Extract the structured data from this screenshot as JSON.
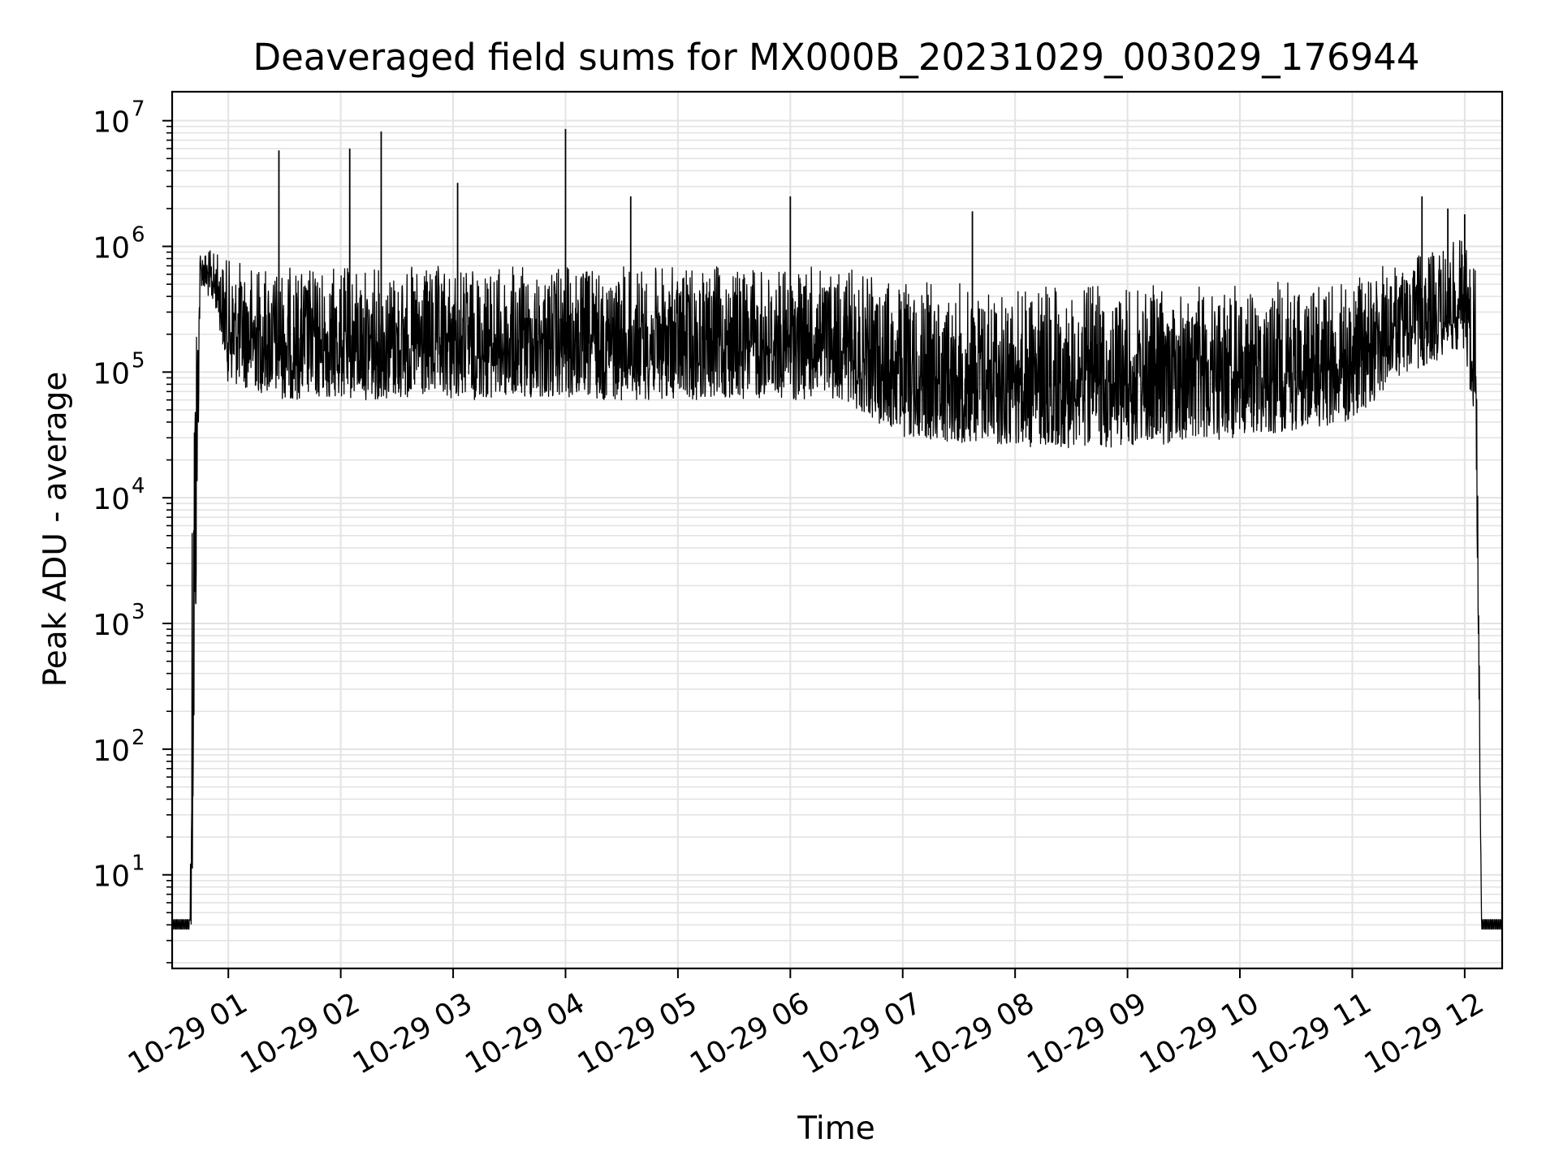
{
  "chart_data": {
    "type": "line",
    "title": "Deaveraged field sums for MX000B_20231029_003029_176944",
    "xlabel": "Time",
    "ylabel": "Peak ADU - average",
    "yscale": "log",
    "xlim": [
      "2023-10-29 00:30",
      "2023-10-29 12:20"
    ],
    "ylim": [
      1.8,
      17000000
    ],
    "grid": true,
    "x_tick_labels": [
      "10-29 01",
      "10-29 02",
      "10-29 03",
      "10-29 04",
      "10-29 05",
      "10-29 06",
      "10-29 07",
      "10-29 08",
      "10-29 09",
      "10-29 10",
      "10-29 11",
      "10-29 12"
    ],
    "x_tick_hours": [
      1,
      2,
      3,
      4,
      5,
      6,
      7,
      8,
      9,
      10,
      11,
      12
    ],
    "y_tick_base": "10",
    "y_tick_exponents": [
      "1",
      "2",
      "3",
      "4",
      "5",
      "6",
      "7"
    ],
    "line_color": "#000000",
    "grid_color": "#e3e3e3",
    "series": [
      {
        "values_note_hours": "x in hours after 2023-10-29 00:00",
        "envelope": [
          {
            "x": 0.5,
            "low": 4,
            "high": 4
          },
          {
            "x": 0.66,
            "low": 4,
            "high": 4
          },
          {
            "x": 0.68,
            "low": 4,
            "high": 300000
          },
          {
            "x": 0.75,
            "low": 500000,
            "high": 1000000
          },
          {
            "x": 0.9,
            "low": 300000,
            "high": 900000
          },
          {
            "x": 1.0,
            "low": 80000,
            "high": 800000
          },
          {
            "x": 1.5,
            "low": 60000,
            "high": 700000
          },
          {
            "x": 2.0,
            "low": 60000,
            "high": 700000
          },
          {
            "x": 3.0,
            "low": 60000,
            "high": 700000
          },
          {
            "x": 4.0,
            "low": 60000,
            "high": 700000
          },
          {
            "x": 5.0,
            "low": 60000,
            "high": 700000
          },
          {
            "x": 6.0,
            "low": 60000,
            "high": 700000
          },
          {
            "x": 6.5,
            "low": 60000,
            "high": 700000
          },
          {
            "x": 6.6,
            "low": 50000,
            "high": 600000
          },
          {
            "x": 7.0,
            "low": 30000,
            "high": 550000
          },
          {
            "x": 8.0,
            "low": 25000,
            "high": 500000
          },
          {
            "x": 9.0,
            "low": 25000,
            "high": 500000
          },
          {
            "x": 10.0,
            "low": 30000,
            "high": 500000
          },
          {
            "x": 11.0,
            "low": 40000,
            "high": 600000
          },
          {
            "x": 11.5,
            "low": 100000,
            "high": 800000
          },
          {
            "x": 12.0,
            "low": 150000,
            "high": 1200000
          },
          {
            "x": 12.1,
            "low": 30000,
            "high": 700000
          },
          {
            "x": 12.15,
            "low": 4,
            "high": 4
          },
          {
            "x": 12.33,
            "low": 4,
            "high": 4
          }
        ],
        "spikes": [
          {
            "x": 1.45,
            "y": 5800000
          },
          {
            "x": 2.08,
            "y": 6000000
          },
          {
            "x": 2.36,
            "y": 8200000
          },
          {
            "x": 3.04,
            "y": 3200000
          },
          {
            "x": 4.0,
            "y": 8600000
          },
          {
            "x": 4.58,
            "y": 2500000
          },
          {
            "x": 6.0,
            "y": 2500000
          },
          {
            "x": 7.62,
            "y": 1900000
          },
          {
            "x": 11.62,
            "y": 2500000
          },
          {
            "x": 11.85,
            "y": 2000000
          },
          {
            "x": 12.0,
            "y": 1800000
          }
        ]
      }
    ]
  }
}
